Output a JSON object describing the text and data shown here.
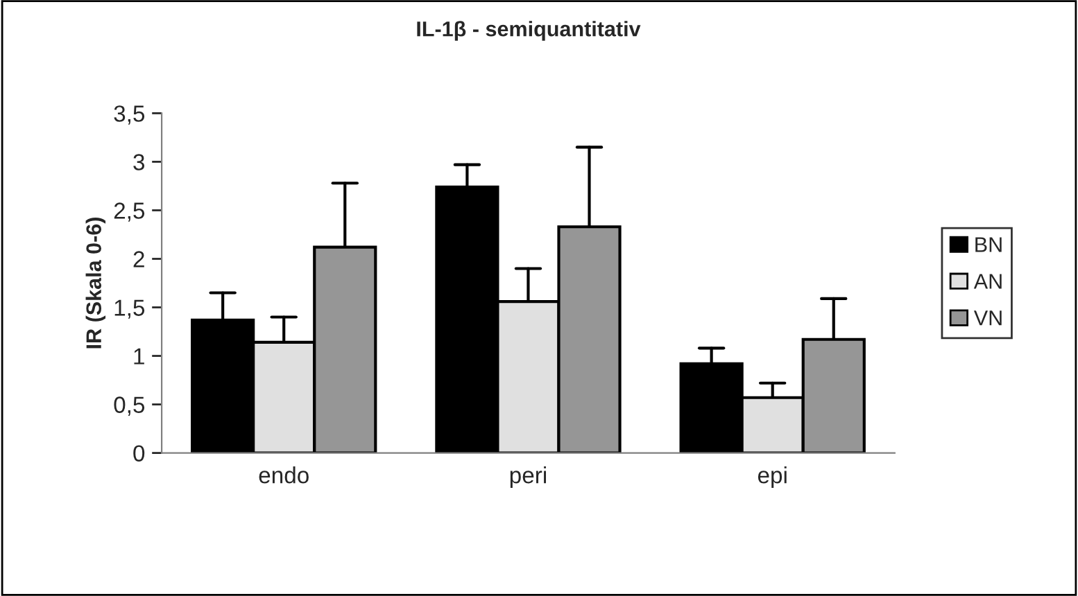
{
  "chart_data": {
    "type": "bar",
    "title": "IL-1β - semiquantitativ",
    "ylabel": "IR (Skala 0-6)",
    "categories": [
      "endo",
      "peri",
      "epi"
    ],
    "series": [
      {
        "name": "BN",
        "color": "#000000",
        "values": [
          1.37,
          2.74,
          0.92
        ],
        "errors": [
          [
            1.37,
            1.65
          ],
          [
            2.74,
            2.97
          ],
          [
            0.92,
            1.08
          ]
        ]
      },
      {
        "name": "AN",
        "color": "#e0e0e0",
        "values": [
          1.14,
          1.56,
          0.57
        ],
        "errors": [
          [
            1.14,
            1.4
          ],
          [
            1.56,
            1.9
          ],
          [
            0.57,
            0.72
          ]
        ]
      },
      {
        "name": "VN",
        "color": "#969696",
        "values": [
          2.12,
          2.33,
          1.17
        ],
        "errors": [
          [
            2.12,
            2.78
          ],
          [
            2.33,
            3.15
          ],
          [
            1.17,
            1.59
          ]
        ]
      }
    ],
    "ylim": [
      0,
      3.5
    ],
    "yticks": [
      0,
      {
        "value": 0.5,
        "label": "0,5"
      },
      1,
      {
        "value": 1.5,
        "label": "1,5"
      },
      2,
      {
        "value": 2.5,
        "label": "2,5"
      },
      3,
      {
        "value": 3.5,
        "label": "3,5"
      }
    ],
    "legend": "right",
    "grid": false
  }
}
